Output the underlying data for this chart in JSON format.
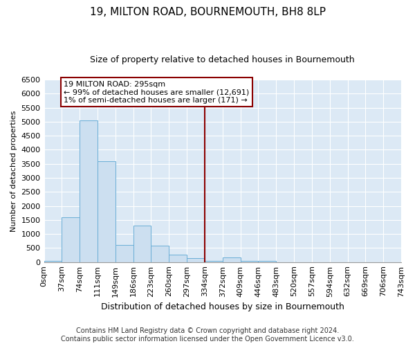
{
  "title": "19, MILTON ROAD, BOURNEMOUTH, BH8 8LP",
  "subtitle": "Size of property relative to detached houses in Bournemouth",
  "xlabel": "Distribution of detached houses by size in Bournemouth",
  "ylabel": "Number of detached properties",
  "bin_labels": [
    "0sqm",
    "37sqm",
    "74sqm",
    "111sqm",
    "149sqm",
    "186sqm",
    "223sqm",
    "260sqm",
    "297sqm",
    "334sqm",
    "372sqm",
    "409sqm",
    "446sqm",
    "483sqm",
    "520sqm",
    "557sqm",
    "594sqm",
    "632sqm",
    "669sqm",
    "706sqm",
    "743sqm"
  ],
  "bar_values": [
    30,
    1600,
    5050,
    3600,
    600,
    1300,
    580,
    270,
    130,
    50,
    170,
    50,
    50,
    0,
    0,
    0,
    0,
    0,
    0,
    0
  ],
  "bar_color": "#ccdff0",
  "bar_edge_color": "#6aaed6",
  "ylim": [
    0,
    6500
  ],
  "yticks": [
    0,
    500,
    1000,
    1500,
    2000,
    2500,
    3000,
    3500,
    4000,
    4500,
    5000,
    5500,
    6000,
    6500
  ],
  "vline_x_index": 8,
  "vline_color": "#8b0000",
  "annotation_text": "19 MILTON ROAD: 295sqm\n← 99% of detached houses are smaller (12,691)\n1% of semi-detached houses are larger (171) →",
  "annotation_box_color": "#8b0000",
  "footer_line1": "Contains HM Land Registry data © Crown copyright and database right 2024.",
  "footer_line2": "Contains public sector information licensed under the Open Government Licence v3.0.",
  "fig_bg_color": "#ffffff",
  "plot_bg_color": "#dce9f5",
  "title_fontsize": 11,
  "subtitle_fontsize": 9,
  "footer_fontsize": 7,
  "annotation_fontsize": 8,
  "ylabel_fontsize": 8,
  "xlabel_fontsize": 9,
  "tick_fontsize": 8
}
